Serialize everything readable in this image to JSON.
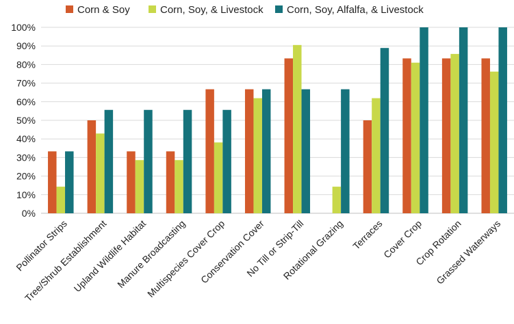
{
  "chart_data": {
    "type": "bar",
    "title": "",
    "xlabel": "",
    "ylabel": "",
    "ylim": [
      0,
      100
    ],
    "y_ticks": [
      "0%",
      "10%",
      "20%",
      "30%",
      "40%",
      "50%",
      "60%",
      "70%",
      "80%",
      "90%",
      "100%"
    ],
    "grid": true,
    "legend_position": "top",
    "categories": [
      "Pollinator Strips",
      "Tree/Shrub Establishment",
      "Upland Wildlife Habitat",
      "Manure Broadcasting",
      "Multispecies Cover Crop",
      "Conservation Cover",
      "No Till or Strip-Till",
      "Rotational Grazing",
      "Terraces",
      "Cover Crop",
      "Crop Rotation",
      "Grassed Waterways"
    ],
    "series": [
      {
        "name": "Corn & Soy",
        "color": "#d35a2b",
        "values": [
          33.3,
          50,
          33.3,
          33.3,
          66.7,
          66.7,
          83.3,
          0,
          50,
          83.3,
          83.3,
          83.3
        ]
      },
      {
        "name": "Corn, Soy, & Livestock",
        "color": "#c8d84a",
        "values": [
          14.3,
          42.9,
          28.6,
          28.6,
          38.1,
          61.9,
          90.5,
          14.3,
          61.9,
          81,
          85.7,
          76.2
        ]
      },
      {
        "name": "Corn, Soy, Alfalfa, & Livestock",
        "color": "#16737c",
        "values": [
          33.3,
          55.6,
          55.6,
          55.6,
          55.6,
          66.7,
          66.7,
          66.7,
          88.9,
          100,
          100,
          100
        ]
      }
    ]
  }
}
